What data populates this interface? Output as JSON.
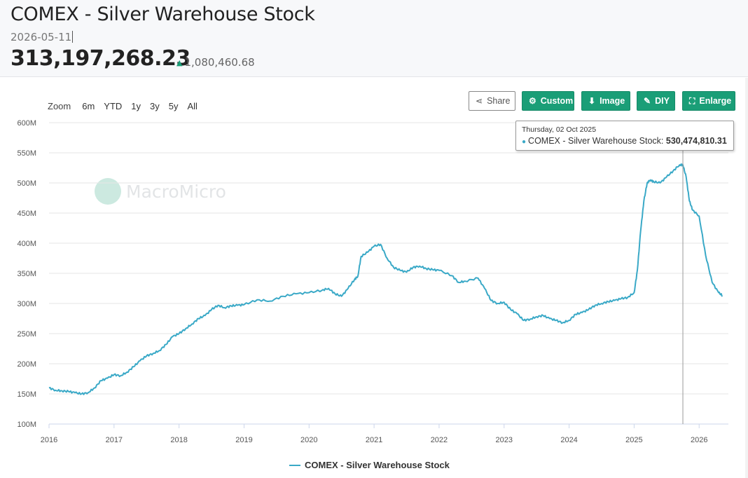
{
  "header": {
    "title": "COMEX - Silver Warehouse Stock",
    "date": "2026-05-11",
    "value": "313,197,268.23",
    "change": "1,080,460.68",
    "change_direction": "up"
  },
  "zoom": {
    "label": "Zoom",
    "options": [
      "6m",
      "YTD",
      "1y",
      "3y",
      "5y",
      "All"
    ]
  },
  "toolbar": {
    "share": "Share",
    "custom": "Custom",
    "image": "Image",
    "diy": "DIY",
    "enlarge": "Enlarge"
  },
  "tooltip": {
    "date": "Thursday, 02 Oct 2025",
    "series": "COMEX - Silver Warehouse Stock",
    "value": "530,474,810.31"
  },
  "watermark": "MacroMicro",
  "colors": {
    "line": "#3aa9c7",
    "accent": "#1a9e77",
    "grid": "#e6e6e6"
  },
  "chart_data": {
    "type": "line",
    "title": "",
    "xlabel": "",
    "ylabel": "",
    "xlim": [
      2016.0,
      2026.45
    ],
    "ylim": [
      100,
      600
    ],
    "y_unit": "M",
    "y_ticks": [
      "100M",
      "150M",
      "200M",
      "250M",
      "300M",
      "350M",
      "400M",
      "450M",
      "500M",
      "550M",
      "600M"
    ],
    "x_ticks": [
      "2016",
      "2017",
      "2018",
      "2019",
      "2020",
      "2021",
      "2022",
      "2023",
      "2024",
      "2025",
      "2026"
    ],
    "grid": true,
    "legend": "bottom",
    "hover_x": 2025.75,
    "series": [
      {
        "name": "COMEX - Silver Warehouse Stock",
        "x": [
          2016.0,
          2016.1,
          2016.2,
          2016.3,
          2016.4,
          2016.5,
          2016.6,
          2016.7,
          2016.8,
          2016.9,
          2017.0,
          2017.1,
          2017.2,
          2017.3,
          2017.4,
          2017.5,
          2017.6,
          2017.7,
          2017.8,
          2017.9,
          2018.0,
          2018.1,
          2018.2,
          2018.3,
          2018.4,
          2018.5,
          2018.6,
          2018.7,
          2018.8,
          2018.9,
          2019.0,
          2019.2,
          2019.4,
          2019.6,
          2019.8,
          2020.0,
          2020.2,
          2020.3,
          2020.4,
          2020.5,
          2020.6,
          2020.7,
          2020.75,
          2020.8,
          2020.9,
          2021.0,
          2021.1,
          2021.2,
          2021.3,
          2021.4,
          2021.5,
          2021.6,
          2021.7,
          2021.8,
          2021.9,
          2022.0,
          2022.2,
          2022.3,
          2022.4,
          2022.6,
          2022.7,
          2022.8,
          2022.9,
          2023.0,
          2023.1,
          2023.2,
          2023.3,
          2023.4,
          2023.5,
          2023.6,
          2023.7,
          2023.8,
          2023.9,
          2024.0,
          2024.1,
          2024.2,
          2024.3,
          2024.4,
          2024.5,
          2024.6,
          2024.7,
          2024.8,
          2024.9,
          2025.0,
          2025.05,
          2025.1,
          2025.15,
          2025.2,
          2025.25,
          2025.3,
          2025.4,
          2025.5,
          2025.6,
          2025.7,
          2025.75,
          2025.8,
          2025.85,
          2025.9,
          2026.0,
          2026.1,
          2026.2,
          2026.3,
          2026.36
        ],
        "y": [
          160,
          156,
          155,
          154,
          152,
          150,
          152,
          160,
          172,
          176,
          182,
          180,
          186,
          195,
          205,
          213,
          217,
          222,
          232,
          245,
          250,
          258,
          266,
          275,
          280,
          290,
          297,
          293,
          296,
          297,
          298,
          306,
          304,
          312,
          316,
          318,
          322,
          325,
          316,
          312,
          325,
          340,
          345,
          378,
          385,
          395,
          398,
          375,
          360,
          355,
          352,
          360,
          362,
          358,
          356,
          355,
          346,
          335,
          337,
          342,
          325,
          305,
          300,
          302,
          290,
          283,
          272,
          274,
          278,
          280,
          275,
          272,
          268,
          272,
          282,
          285,
          290,
          297,
          300,
          303,
          305,
          308,
          310,
          318,
          355,
          420,
          470,
          500,
          505,
          502,
          500,
          510,
          520,
          530,
          530,
          510,
          470,
          455,
          445,
          380,
          335,
          318,
          313
        ]
      }
    ]
  }
}
